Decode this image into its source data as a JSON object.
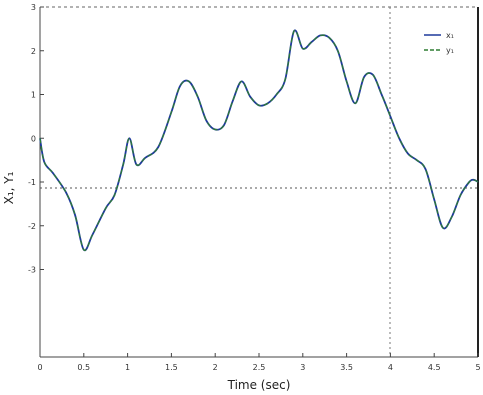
{
  "chart_data": {
    "type": "line",
    "xlabel": "Time (sec)",
    "ylabel": "X₁, Y₁",
    "xlim": [
      0,
      5
    ],
    "ylim": [
      -5,
      3
    ],
    "x_ticks": [
      0,
      0.5,
      1,
      1.5,
      2,
      2.5,
      3,
      3.5,
      4,
      4.5,
      5
    ],
    "x_tick_labels": [
      "0",
      "0.5",
      "1",
      "1.5",
      "2",
      "2.5",
      "3",
      "3.5",
      "4",
      "4.5",
      "5"
    ],
    "y_ticks": [
      3,
      2,
      1,
      0,
      -1,
      -2,
      -3
    ],
    "y_tick_labels": [
      "3",
      "2",
      "1",
      "0",
      "-1",
      "-2",
      "-3"
    ],
    "grid": "partial",
    "legend_position": "top-right",
    "series": [
      {
        "name": "x₁",
        "color": "#1f3a9c",
        "dash": "solid",
        "x": [
          0,
          0.05,
          0.15,
          0.3,
          0.4,
          0.5,
          0.6,
          0.75,
          0.85,
          0.95,
          1.02,
          1.1,
          1.2,
          1.35,
          1.5,
          1.6,
          1.7,
          1.8,
          1.9,
          2.0,
          2.1,
          2.2,
          2.3,
          2.4,
          2.5,
          2.6,
          2.7,
          2.8,
          2.9,
          3.0,
          3.1,
          3.2,
          3.3,
          3.4,
          3.5,
          3.6,
          3.7,
          3.8,
          3.9,
          4.0,
          4.1,
          4.2,
          4.3,
          4.4,
          4.5,
          4.6,
          4.7,
          4.8,
          4.9,
          4.95,
          5.0
        ],
        "y": [
          0,
          -0.55,
          -0.8,
          -1.25,
          -1.75,
          -2.55,
          -2.2,
          -1.6,
          -1.3,
          -0.6,
          0.0,
          -0.6,
          -0.45,
          -0.2,
          0.6,
          1.2,
          1.3,
          0.95,
          0.4,
          0.2,
          0.3,
          0.85,
          1.3,
          0.95,
          0.75,
          0.8,
          1.0,
          1.35,
          2.45,
          2.05,
          2.2,
          2.35,
          2.3,
          2.0,
          1.3,
          0.8,
          1.4,
          1.45,
          1.0,
          0.5,
          0.0,
          -0.35,
          -0.5,
          -0.7,
          -1.4,
          -2.05,
          -1.8,
          -1.3,
          -1.0,
          -0.95,
          -1.0
        ]
      },
      {
        "name": "y₁",
        "color": "#2e7d32",
        "dash": "dashed",
        "x": [
          0,
          0.05,
          0.15,
          0.3,
          0.4,
          0.5,
          0.6,
          0.75,
          0.85,
          0.95,
          1.02,
          1.1,
          1.2,
          1.35,
          1.5,
          1.6,
          1.7,
          1.8,
          1.9,
          2.0,
          2.1,
          2.2,
          2.3,
          2.4,
          2.5,
          2.6,
          2.7,
          2.8,
          2.9,
          3.0,
          3.1,
          3.2,
          3.3,
          3.4,
          3.5,
          3.6,
          3.7,
          3.8,
          3.9,
          4.0,
          4.1,
          4.2,
          4.3,
          4.4,
          4.5,
          4.6,
          4.7,
          4.8,
          4.9,
          4.95,
          5.0
        ],
        "y": [
          0,
          -0.55,
          -0.8,
          -1.25,
          -1.75,
          -2.55,
          -2.2,
          -1.6,
          -1.3,
          -0.6,
          0.0,
          -0.6,
          -0.45,
          -0.2,
          0.6,
          1.2,
          1.3,
          0.95,
          0.4,
          0.2,
          0.3,
          0.85,
          1.3,
          0.95,
          0.75,
          0.8,
          1.0,
          1.35,
          2.45,
          2.05,
          2.2,
          2.35,
          2.3,
          2.0,
          1.3,
          0.8,
          1.4,
          1.45,
          1.0,
          0.5,
          0.0,
          -0.35,
          -0.5,
          -0.7,
          -1.4,
          -2.05,
          -1.8,
          -1.3,
          -1.0,
          -0.95,
          -1.0
        ]
      }
    ]
  }
}
